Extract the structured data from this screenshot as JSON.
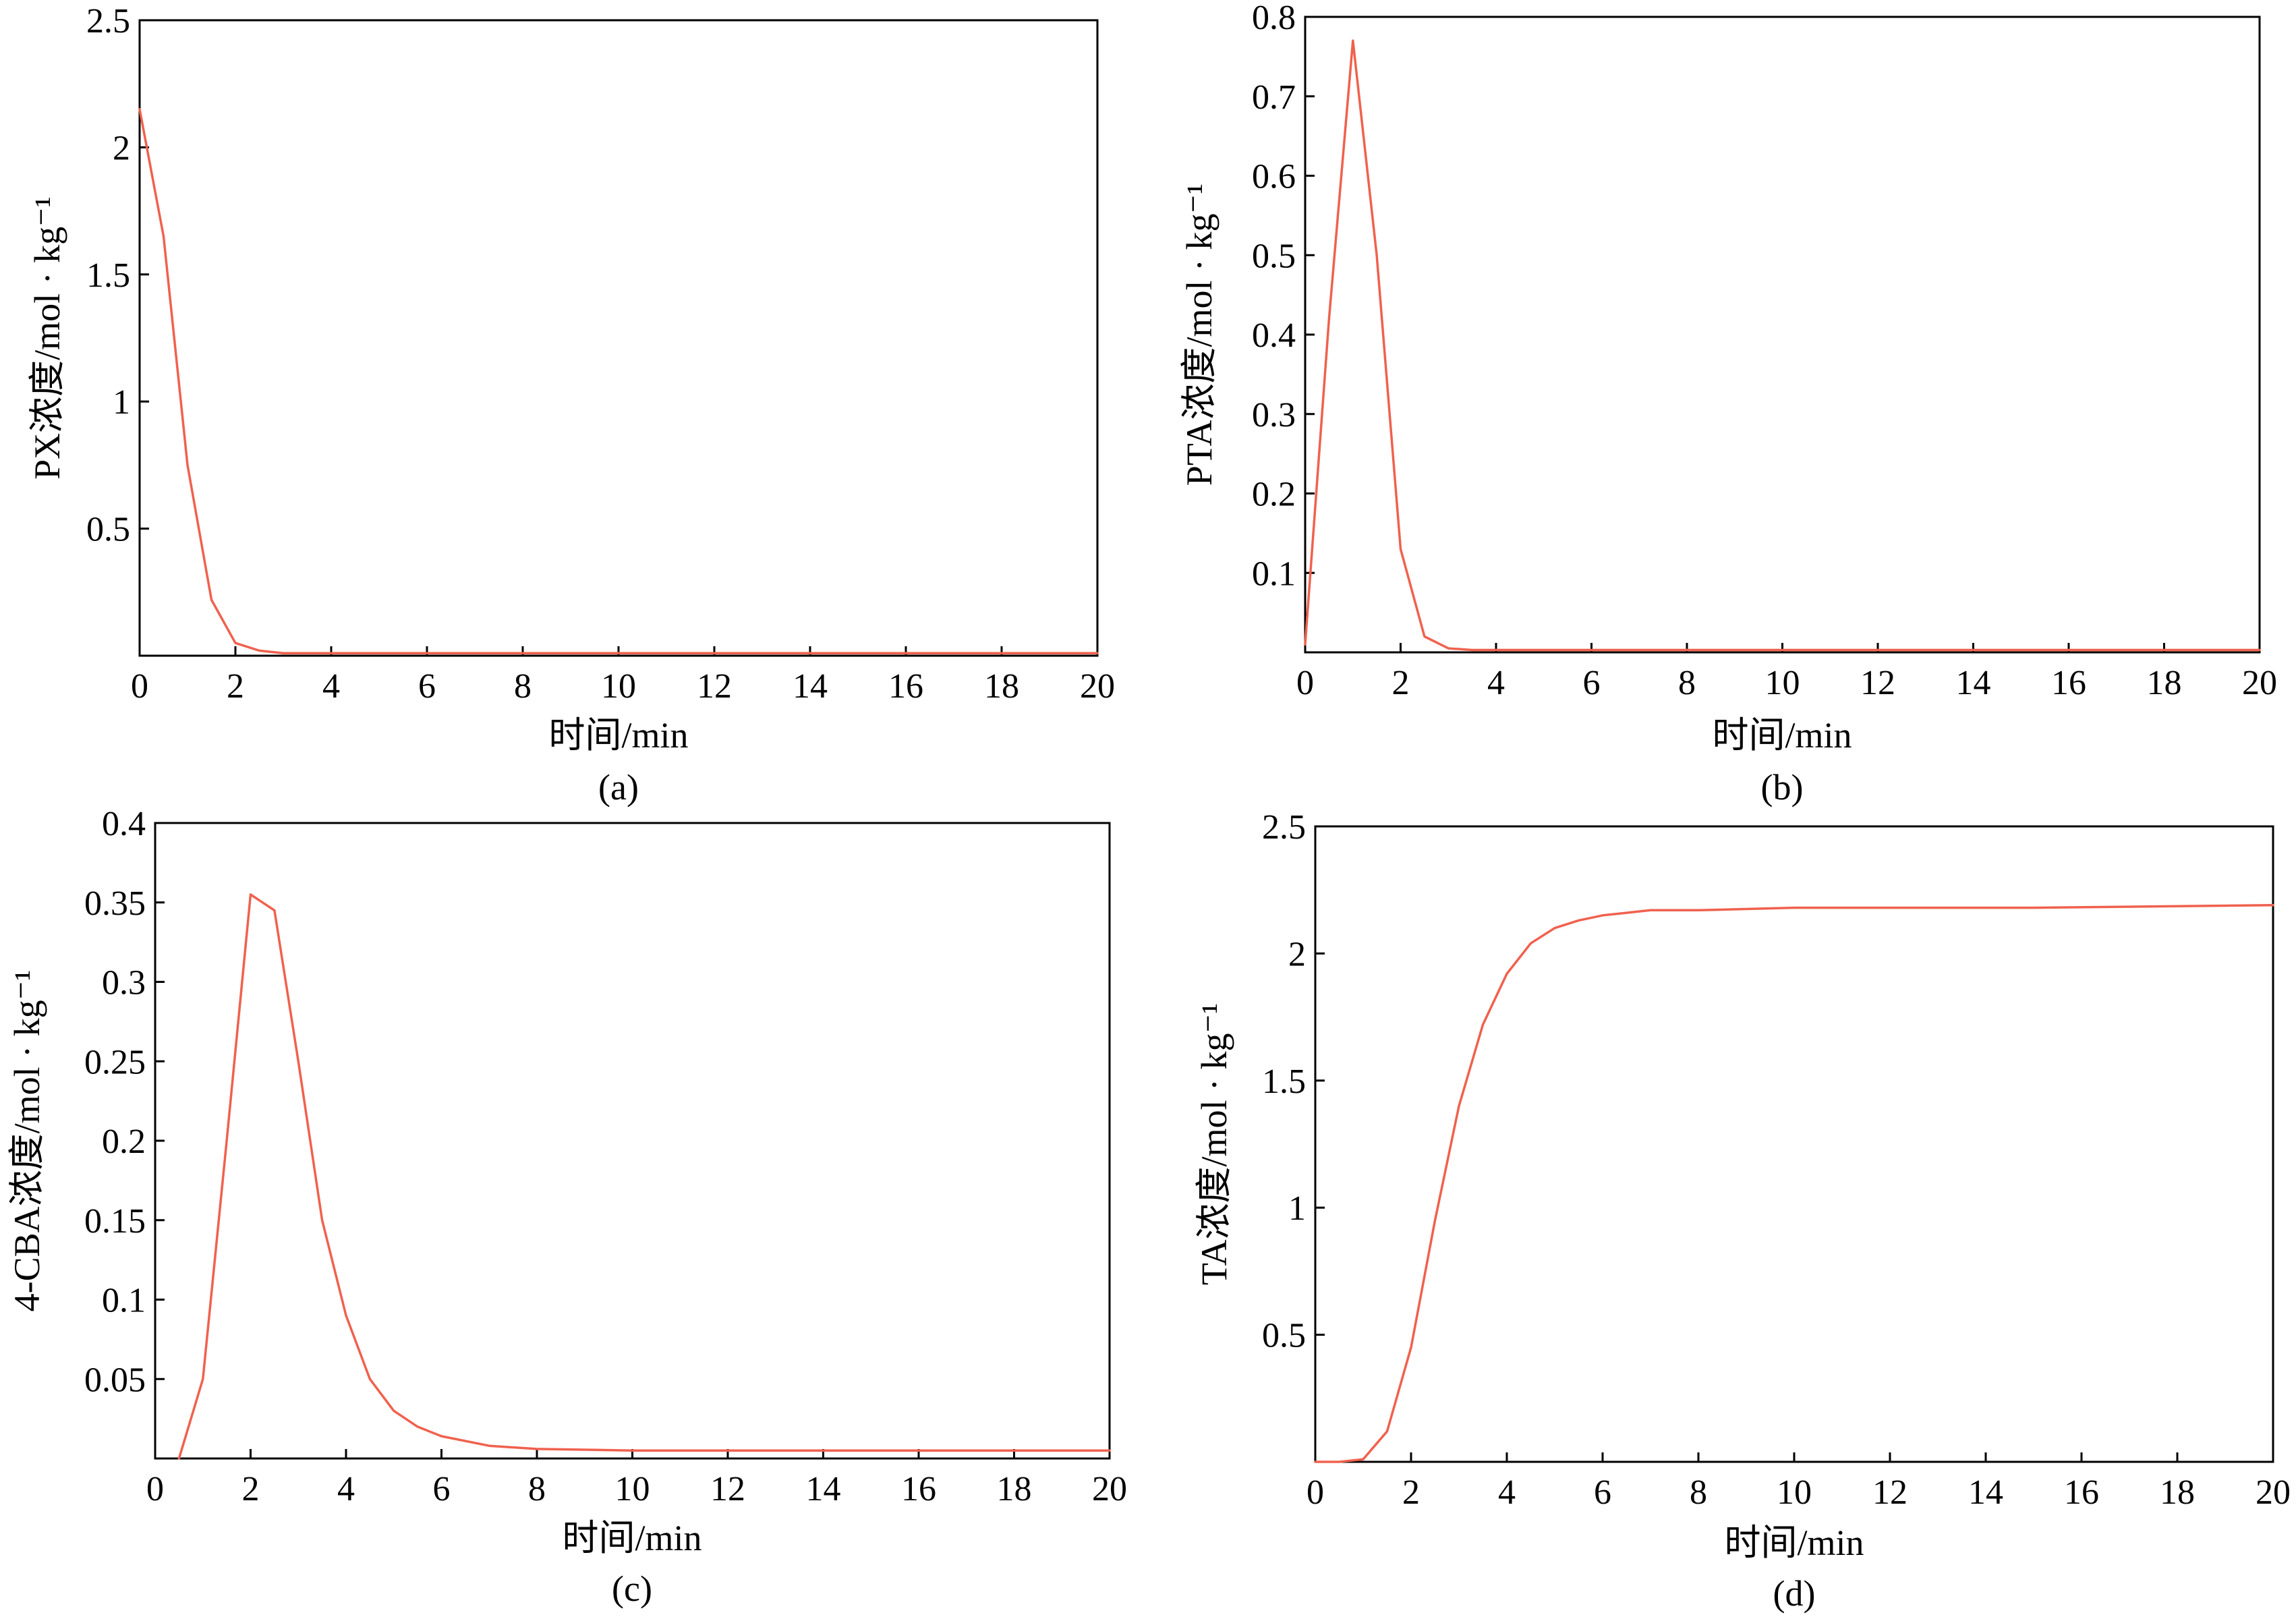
{
  "chart_data": [
    {
      "type": "line",
      "panel_label": "(a)",
      "xlabel": "时间/min",
      "ylabel": "PX浓度/mol · kg⁻¹",
      "xlim": [
        0,
        20
      ],
      "ylim": [
        0,
        2.5
      ],
      "xticks": [
        "0",
        "2",
        "4",
        "6",
        "8",
        "10",
        "12",
        "14",
        "16",
        "18",
        "20"
      ],
      "yticks": [
        "0.5",
        "1",
        "1.5",
        "2",
        "2.5"
      ],
      "grid": false,
      "color": "#f0614e",
      "series": [
        {
          "x": [
            0,
            0.5,
            1.0,
            1.5,
            2.0,
            2.5,
            3.0,
            4.0,
            6.0,
            10.0,
            15.0,
            18.0,
            20.0
          ],
          "y": [
            2.15,
            1.65,
            0.75,
            0.22,
            0.05,
            0.02,
            0.01,
            0.01,
            0.01,
            0.01,
            0.01,
            0.01,
            0.01
          ]
        }
      ]
    },
    {
      "type": "line",
      "panel_label": "(b)",
      "xlabel": "时间/min",
      "ylabel": "PTA浓度/mol · kg⁻¹",
      "xlim": [
        0,
        20
      ],
      "ylim": [
        0,
        0.8
      ],
      "xticks": [
        "0",
        "2",
        "4",
        "6",
        "8",
        "10",
        "12",
        "14",
        "16",
        "18",
        "20"
      ],
      "yticks": [
        "0.1",
        "0.2",
        "0.3",
        "0.4",
        "0.5",
        "0.6",
        "0.7",
        "0.8"
      ],
      "grid": false,
      "color": "#f0614e",
      "series": [
        {
          "x": [
            0,
            0.5,
            1.0,
            1.5,
            2.0,
            2.5,
            3.0,
            3.5,
            4.0,
            6.0,
            10.0,
            15.0,
            20.0
          ],
          "y": [
            0.01,
            0.42,
            0.77,
            0.5,
            0.13,
            0.02,
            0.005,
            0.003,
            0.003,
            0.003,
            0.003,
            0.003,
            0.003
          ]
        }
      ]
    },
    {
      "type": "line",
      "panel_label": "(c)",
      "xlabel": "时间/min",
      "ylabel": "4-CBA浓度/mol · kg⁻¹",
      "xlim": [
        0,
        20
      ],
      "ylim": [
        0,
        0.4
      ],
      "xticks": [
        "0",
        "2",
        "4",
        "6",
        "8",
        "10",
        "12",
        "14",
        "16",
        "18",
        "20"
      ],
      "yticks": [
        "0.05",
        "0.1",
        "0.15",
        "0.2",
        "0.25",
        "0.3",
        "0.35",
        "0.4"
      ],
      "grid": false,
      "color": "#f0614e",
      "series": [
        {
          "x": [
            0.5,
            1.0,
            1.5,
            2.0,
            2.5,
            3.0,
            3.5,
            4.0,
            4.5,
            5.0,
            5.5,
            6.0,
            7.0,
            8.0,
            10.0,
            15.0,
            20.0
          ],
          "y": [
            0.0,
            0.05,
            0.2,
            0.355,
            0.345,
            0.25,
            0.15,
            0.09,
            0.05,
            0.03,
            0.02,
            0.014,
            0.008,
            0.006,
            0.005,
            0.005,
            0.005
          ]
        }
      ]
    },
    {
      "type": "line",
      "panel_label": "(d)",
      "xlabel": "时间/min",
      "ylabel": "TA浓度/mol · kg⁻¹",
      "xlim": [
        0,
        20
      ],
      "ylim": [
        0,
        2.5
      ],
      "xticks": [
        "0",
        "2",
        "4",
        "6",
        "8",
        "10",
        "12",
        "14",
        "16",
        "18",
        "20"
      ],
      "yticks": [
        "0.5",
        "1",
        "1.5",
        "2",
        "2.5"
      ],
      "grid": false,
      "color": "#f0614e",
      "series": [
        {
          "x": [
            0,
            0.5,
            1.0,
            1.5,
            2.0,
            2.5,
            3.0,
            3.5,
            4.0,
            4.5,
            5.0,
            5.5,
            6.0,
            7.0,
            8.0,
            10.0,
            15.0,
            20.0
          ],
          "y": [
            0.0,
            0.0,
            0.01,
            0.12,
            0.45,
            0.95,
            1.4,
            1.72,
            1.92,
            2.04,
            2.1,
            2.13,
            2.15,
            2.17,
            2.17,
            2.18,
            2.18,
            2.19
          ]
        }
      ]
    }
  ]
}
